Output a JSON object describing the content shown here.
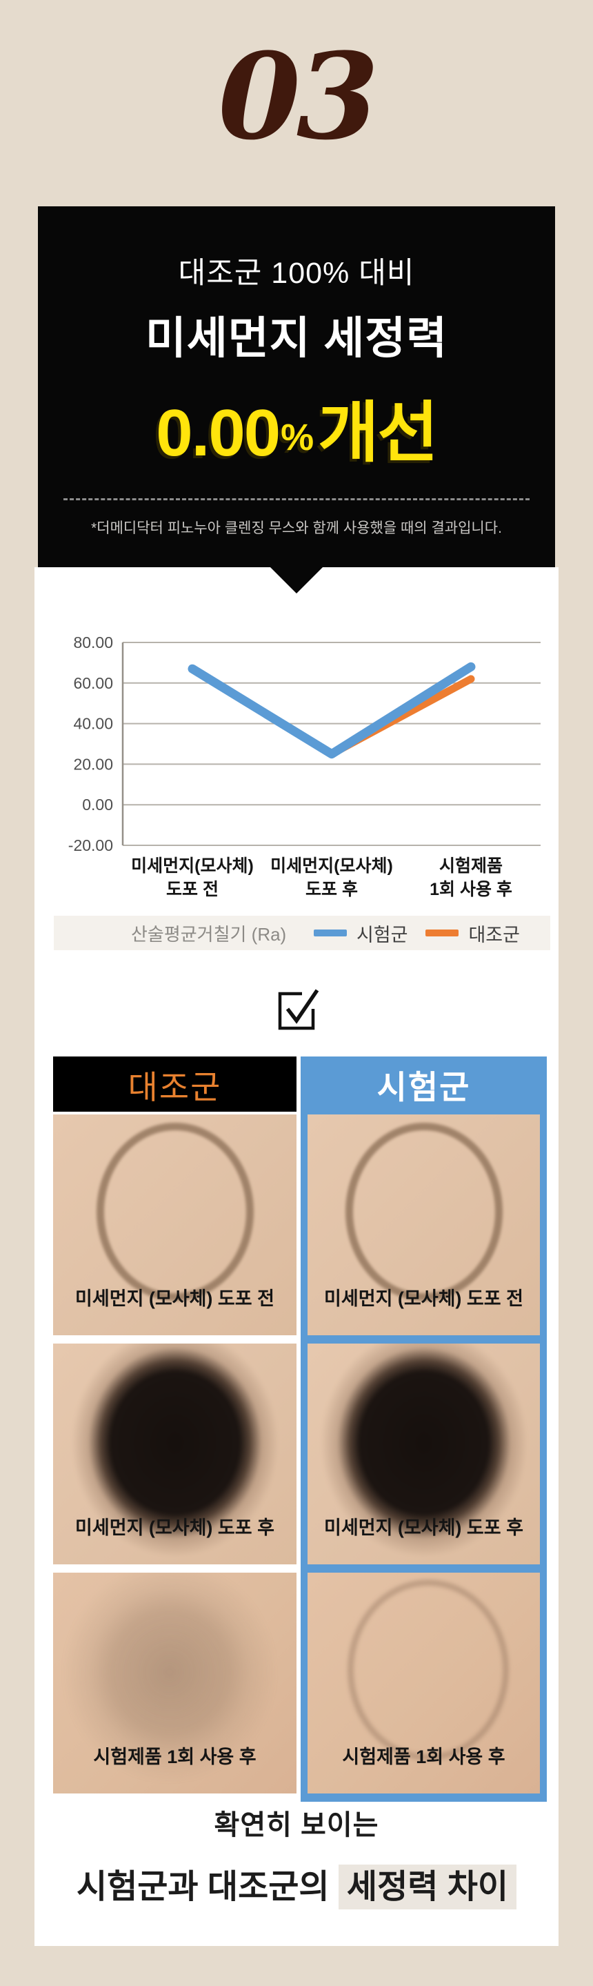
{
  "page": {
    "bg_color": "#e5dbcd",
    "panel_color": "#ffffff",
    "accent_yellow": "#ffe40c",
    "accent_blue": "#5b9bd5",
    "accent_orange": "#ed7d31"
  },
  "section_number": "03",
  "banner": {
    "line1": "대조군 100% 대비",
    "line2": "미세먼지 세정력",
    "value": "0.00",
    "percent_sign": "%",
    "suffix": "개선",
    "note": "*더메디닥터 피노누아 클렌징 무스와 함께 사용했을 때의 결과입니다."
  },
  "chart_data": {
    "type": "line",
    "categories": [
      [
        "미세먼지(모사체)",
        "도포 전"
      ],
      [
        "미세먼지(모사체)",
        "도포 후"
      ],
      [
        "시험제품",
        "1회 사용 후"
      ]
    ],
    "series": [
      {
        "name": "시험군",
        "color": "#5b9bd5",
        "values": [
          67,
          25,
          68
        ]
      },
      {
        "name": "대조군",
        "color": "#ed7d31",
        "values": [
          67,
          25,
          62
        ]
      }
    ],
    "ylim": [
      -20,
      80
    ],
    "yticks": [
      "80.00",
      "60.00",
      "40.00",
      "20.00",
      "0.00",
      "-20.00"
    ],
    "ylabel_note": "산술평균거칠기 (Ra)",
    "grid": true,
    "legend_position": "bottom"
  },
  "checkbox_icon": "checked-box",
  "comparison": {
    "control_header": "대조군",
    "test_header": "시험군",
    "control_header_bg": "#000000",
    "test_header_bg": "#5b9bd5",
    "row_labels": [
      "미세먼지 (모사체) 도포 전",
      "미세먼지 (모사체) 도포 후",
      "시험제품 1회 사용 후"
    ]
  },
  "footer": {
    "line1": "확연히 보이는",
    "line2_prefix": "시험군과 대조군의 ",
    "line2_highlight": "세정력 차이"
  }
}
